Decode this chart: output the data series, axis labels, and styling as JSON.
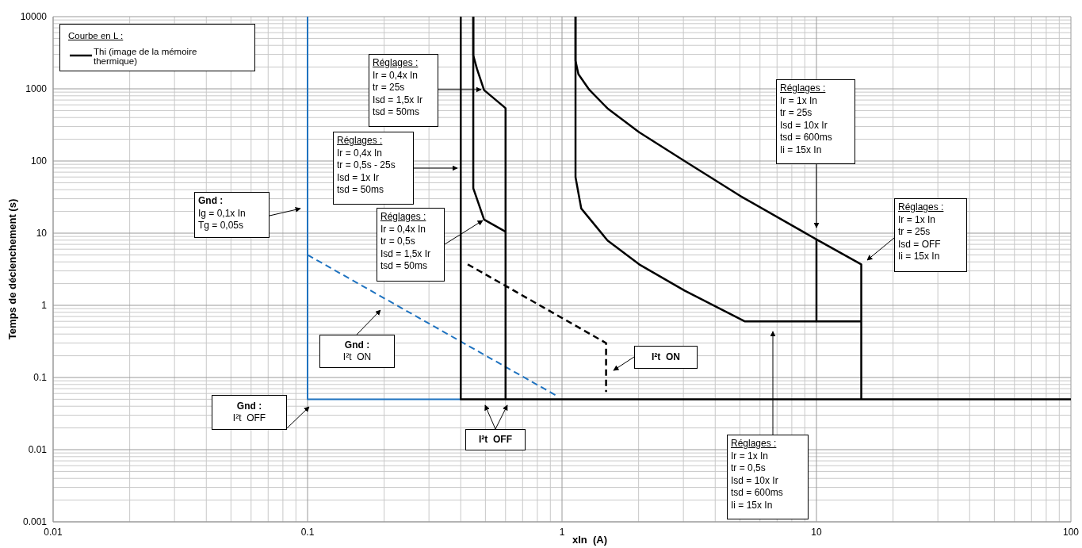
{
  "chart_data": {
    "type": "line",
    "xlabel": "xIn  (A)",
    "ylabel": "Temps de déclenchement (s)",
    "log": "xy",
    "grid": true,
    "legend": "top left",
    "legend_title": "Courbe en L :",
    "xlim": [
      0.01,
      100
    ],
    "xticks": [
      0.01,
      0.1,
      1,
      10,
      100
    ],
    "ylim": [
      0.001,
      10000
    ],
    "yticks": [
      0.001,
      0.01,
      0.1,
      1,
      10,
      100,
      1000,
      10000
    ],
    "series": [
      {
        "color": "#1f73c0",
        "line_style": "solid",
        "x": [
          0.1,
          0.1,
          0.4
        ],
        "values": [
          10000,
          0.05,
          0.05
        ]
      },
      {
        "color": "#1f73c0",
        "line_style": "dashed",
        "x": [
          0.1,
          0.96
        ],
        "values": [
          5,
          0.055
        ]
      },
      {
        "color": "#000000",
        "line_style": "solid",
        "x": [
          0.4,
          0.4,
          100
        ],
        "values": [
          10000,
          0.05,
          0.05
        ]
      },
      {
        "color": "#000000",
        "line_style": "solid",
        "x": [
          0.448,
          0.448,
          0.463,
          0.494,
          0.6,
          0.6
        ],
        "values": [
          10000,
          2900,
          1900,
          960,
          540,
          0.05
        ]
      },
      {
        "color": "#000000",
        "line_style": "solid",
        "x": [
          0.448,
          0.448,
          0.463,
          0.494,
          0.6
        ],
        "values": [
          10000,
          42,
          30,
          15.4,
          10.5
        ]
      },
      {
        "color": "#000000",
        "line_style": "dashed",
        "x": [
          0.426,
          1.49,
          1.49
        ],
        "values": [
          3.7,
          0.3,
          0.063
        ]
      },
      {
        "name": "Thi (image de la mémoire thermique)",
        "color": "#000000",
        "line_style": "solid",
        "x": [
          1.13,
          1.13,
          1.16,
          1.28,
          1.51,
          2.01,
          3.03,
          5.0,
          10,
          15,
          15
        ],
        "values": [
          10000,
          2450,
          1600,
          970,
          535,
          250,
          100,
          33,
          8.2,
          3.7,
          0.05
        ]
      },
      {
        "color": "#000000",
        "line_style": "solid",
        "x": [
          10,
          10,
          15
        ],
        "values": [
          8.2,
          0.6,
          0.6
        ]
      },
      {
        "color": "#000000",
        "line_style": "solid",
        "x": [
          1.13,
          1.13,
          1.19,
          1.51,
          2.01,
          3.03,
          5.22,
          10
        ],
        "values": [
          10000,
          60,
          22,
          7.9,
          3.7,
          1.6,
          0.6,
          0.6
        ]
      }
    ],
    "annotations": [
      "Réglages :\nIr = 0,4x In\ntr = 25s\nIsd = 1,5x Ir\ntsd = 50ms",
      "Réglages :\nIr = 0,4x In\ntr = 0,5s - 25s\nIsd = 1x Ir\ntsd = 50ms",
      "Réglages :\nIr = 0,4x In\ntr = 0,5s\nIsd = 1,5x Ir\ntsd = 50ms",
      "Gnd :\nIg = 0,1x In\nTg = 0,05s",
      "Gnd :\nI²t  ON",
      "Gnd :\nI²t  OFF",
      "I²t  OFF",
      "I²t  ON",
      "Réglages :\nIr = 1x In\ntr = 25s\nIsd = 10x Ir\ntsd = 600ms\nIi = 15x In",
      "Réglages :\nIr = 1x In\ntr = 25s\nIsd = OFF\nIi = 15x In",
      "Réglages :\nIr = 1x In\ntr = 0,5s\nIsd = 10x Ir\ntsd = 600ms\nIi = 15x In"
    ]
  }
}
